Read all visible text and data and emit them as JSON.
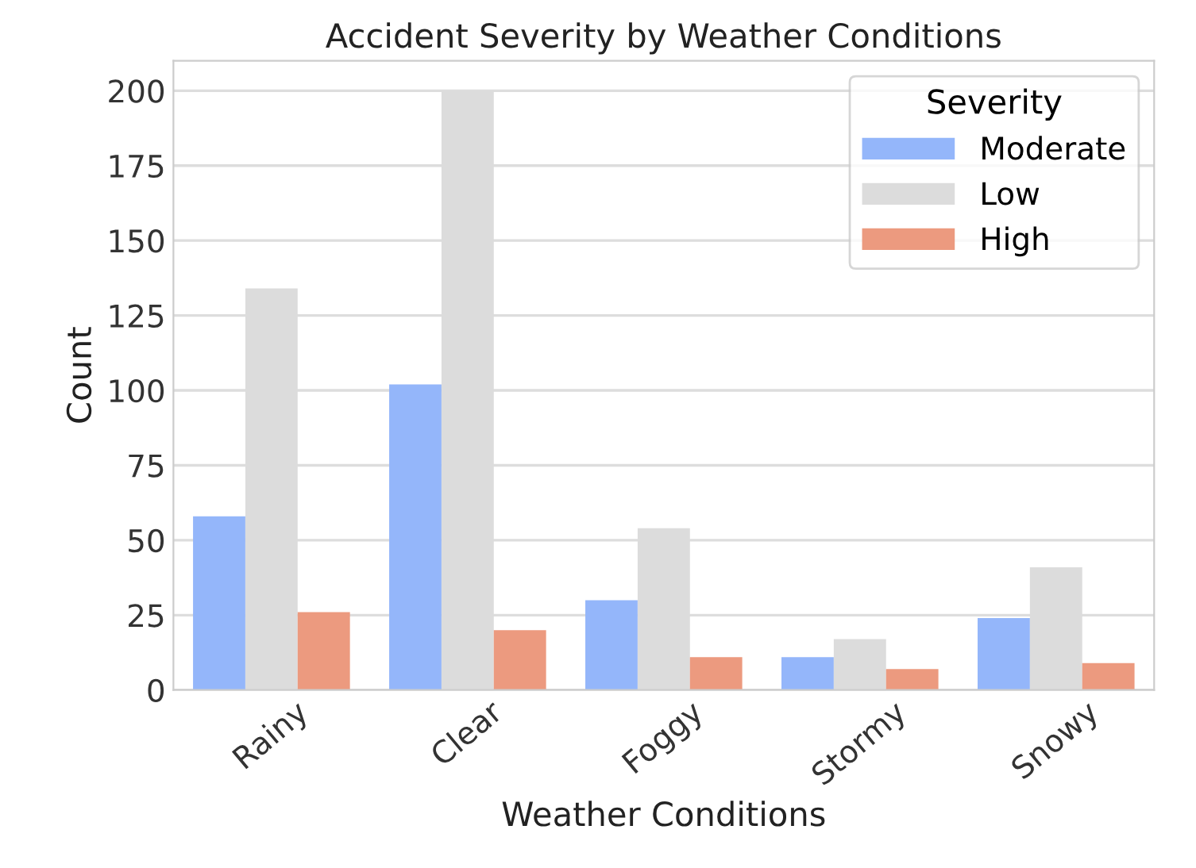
{
  "chart_data": {
    "type": "bar",
    "title": "Accident Severity by Weather Conditions",
    "xlabel": "Weather Conditions",
    "ylabel": "Count",
    "legend_title": "Severity",
    "categories": [
      "Rainy",
      "Clear",
      "Foggy",
      "Stormy",
      "Snowy"
    ],
    "series": [
      {
        "name": "Moderate",
        "color": "#94b6fa",
        "values": [
          58,
          102,
          30,
          11,
          24
        ]
      },
      {
        "name": "Low",
        "color": "#dcdcdc",
        "values": [
          134,
          200,
          54,
          17,
          41
        ]
      },
      {
        "name": "High",
        "color": "#ec9a7f",
        "values": [
          26,
          20,
          11,
          7,
          9
        ]
      }
    ],
    "ylim": [
      0,
      210
    ],
    "yticks": [
      0,
      25,
      50,
      75,
      100,
      125,
      150,
      175,
      200
    ],
    "grid": "y",
    "legend": "top right"
  }
}
